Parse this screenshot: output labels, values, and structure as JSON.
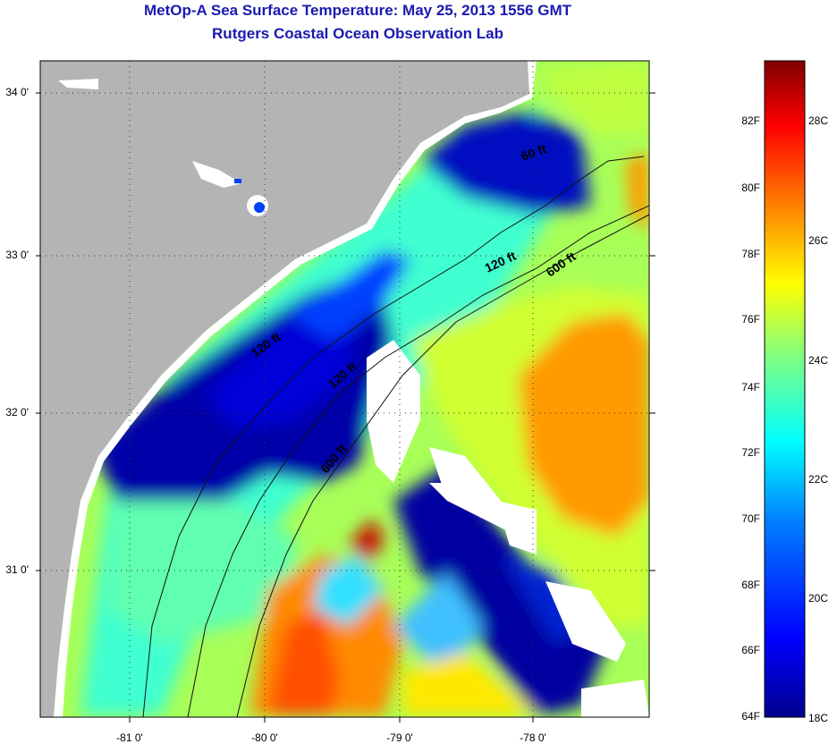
{
  "header": {
    "title": "MetOp-A Sea Surface Temperature:  May 25, 2013 1556 GMT",
    "subtitle": "Rutgers Coastal Ocean Observation Lab"
  },
  "map": {
    "lat_labels": [
      "34 0'",
      "33 0'",
      "32 0'",
      "31 0'"
    ],
    "lon_labels": [
      "-81 0'",
      "-80 0'",
      "-79 0'",
      "-78 0'"
    ],
    "isobath_labels": [
      "60 ft",
      "120 ft",
      "600 ft",
      "120 ft",
      "120 ft",
      "600 ft"
    ],
    "land_color": "#b4b4b4",
    "cloud_color": "#ffffff"
  },
  "colorbar": {
    "fahrenheit_labels": [
      "82F",
      "80F",
      "78F",
      "76F",
      "74F",
      "72F",
      "70F",
      "68F",
      "66F",
      "64F"
    ],
    "celsius_labels": [
      "28C",
      "26C",
      "24C",
      "22C",
      "20C",
      "18C"
    ],
    "colormap": [
      "#00008f",
      "#0000ff",
      "#0080ff",
      "#00ffff",
      "#80ff80",
      "#ffff00",
      "#ff8000",
      "#ff0000",
      "#800000"
    ]
  }
}
